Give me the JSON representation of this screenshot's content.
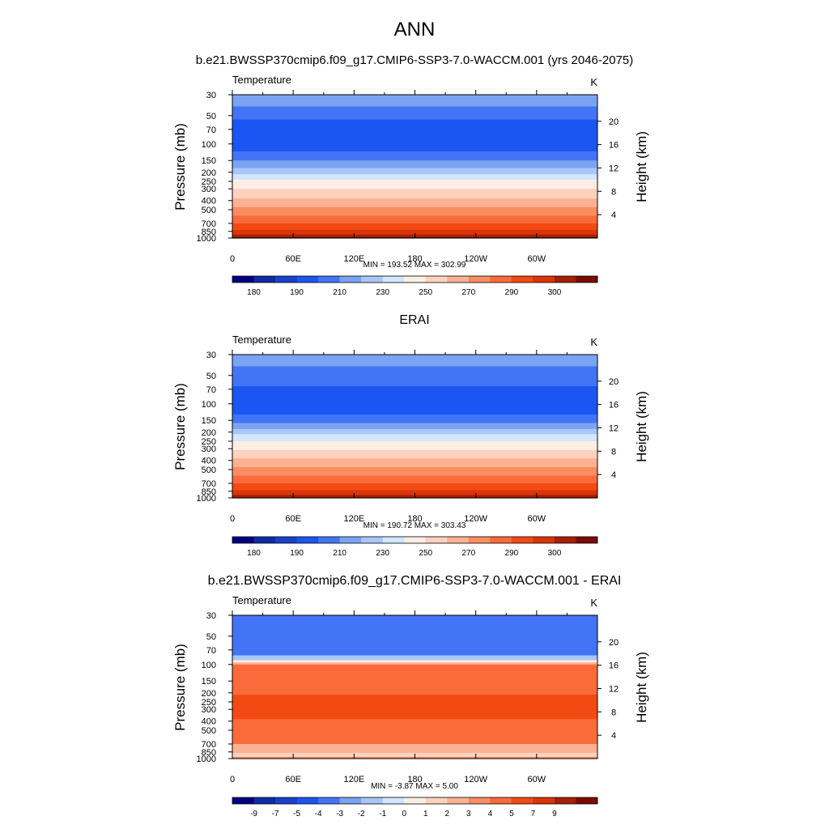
{
  "figure": {
    "title": "ANN",
    "subtitle": "b.e21.BWSSP370cmip6.f09_g17.CMIP6-SSP3-7.0-WACCM.001 (yrs 2046-2075)"
  },
  "chart_data": [
    {
      "type": "heatmap",
      "panel_title": "",
      "variable": "Temperature",
      "units": "K",
      "ylabel": "Pressure (mb)",
      "ylabel_right": "Height (km)",
      "x_ticks": [
        "0",
        "60E",
        "120E",
        "180",
        "120W",
        "60W"
      ],
      "y_ticks": [
        "30",
        "50",
        "70",
        "100",
        "150",
        "200",
        "250",
        "300",
        "400",
        "500",
        "700",
        "850",
        "1000"
      ],
      "y_ticks_right": [
        "20",
        "16",
        "12",
        "8",
        "4"
      ],
      "stats": "MIN = 193.52  MAX = 302.99",
      "colorbar_labels": [
        "180",
        "190",
        "210",
        "230",
        "250",
        "270",
        "290",
        "300"
      ],
      "colorbar_colors": [
        "#000080",
        "#0d2ba4",
        "#1841cc",
        "#1b55f2",
        "#4274f5",
        "#7aa3f2",
        "#a8c6fa",
        "#d2e6fd",
        "#fdeee3",
        "#fcd2bf",
        "#fbb292",
        "#fb8d62",
        "#fb6a3a",
        "#f24a12",
        "#d93507",
        "#a81e08",
        "#7a0a04"
      ],
      "layers": [
        {
          "p": 30,
          "level": 5
        },
        {
          "p": 40,
          "level": 4
        },
        {
          "p": 55,
          "level": 3
        },
        {
          "p": 100,
          "level": 3
        },
        {
          "p": 120,
          "level": 4
        },
        {
          "p": 150,
          "level": 5
        },
        {
          "p": 180,
          "level": 6
        },
        {
          "p": 210,
          "level": 7
        },
        {
          "p": 240,
          "level": 8
        },
        {
          "p": 300,
          "level": 9
        },
        {
          "p": 380,
          "level": 10
        },
        {
          "p": 470,
          "level": 11
        },
        {
          "p": 580,
          "level": 12
        },
        {
          "p": 700,
          "level": 13
        },
        {
          "p": 820,
          "level": 14
        },
        {
          "p": 920,
          "level": 15
        },
        {
          "p": 980,
          "level": 16
        }
      ]
    },
    {
      "type": "heatmap",
      "panel_title": "ERAI",
      "variable": "Temperature",
      "units": "K",
      "ylabel": "Pressure (mb)",
      "ylabel_right": "Height (km)",
      "x_ticks": [
        "0",
        "60E",
        "120E",
        "180",
        "120W",
        "60W"
      ],
      "y_ticks": [
        "30",
        "50",
        "70",
        "100",
        "150",
        "200",
        "250",
        "300",
        "400",
        "500",
        "700",
        "850",
        "1000"
      ],
      "y_ticks_right": [
        "20",
        "16",
        "12",
        "8",
        "4"
      ],
      "stats": "MIN = 190.72  MAX = 303.43",
      "colorbar_labels": [
        "180",
        "190",
        "210",
        "230",
        "250",
        "270",
        "290",
        "300"
      ],
      "colorbar_colors": [
        "#000080",
        "#0d2ba4",
        "#1841cc",
        "#1b55f2",
        "#4274f5",
        "#7aa3f2",
        "#a8c6fa",
        "#d2e6fd",
        "#fdeee3",
        "#fcd2bf",
        "#fbb292",
        "#fb8d62",
        "#fb6a3a",
        "#f24a12",
        "#d93507",
        "#a81e08",
        "#7a0a04"
      ],
      "layers": [
        {
          "p": 30,
          "level": 5
        },
        {
          "p": 40,
          "level": 4
        },
        {
          "p": 65,
          "level": 3
        },
        {
          "p": 130,
          "level": 4
        },
        {
          "p": 160,
          "level": 5
        },
        {
          "p": 185,
          "level": 6
        },
        {
          "p": 210,
          "level": 7
        },
        {
          "p": 250,
          "level": 8
        },
        {
          "p": 310,
          "level": 9
        },
        {
          "p": 380,
          "level": 10
        },
        {
          "p": 470,
          "level": 11
        },
        {
          "p": 580,
          "level": 12
        },
        {
          "p": 700,
          "level": 13
        },
        {
          "p": 830,
          "level": 14
        },
        {
          "p": 930,
          "level": 15
        },
        {
          "p": 985,
          "level": 16
        }
      ]
    },
    {
      "type": "heatmap",
      "panel_title": "b.e21.BWSSP370cmip6.f09_g17.CMIP6-SSP3-7.0-WACCM.001 - ERAI",
      "variable": "Temperature",
      "units": "K",
      "ylabel": "Pressure (mb)",
      "ylabel_right": "Height (km)",
      "x_ticks": [
        "0",
        "60E",
        "120E",
        "180",
        "120W",
        "60W"
      ],
      "y_ticks": [
        "30",
        "50",
        "70",
        "100",
        "150",
        "200",
        "250",
        "300",
        "400",
        "500",
        "700",
        "850",
        "1000"
      ],
      "y_ticks_right": [
        "20",
        "16",
        "12",
        "8",
        "4"
      ],
      "stats": "MIN =  -3.87  MAX =   5.00",
      "colorbar_labels": [
        "-9",
        "-7",
        "-5",
        "-4",
        "-3",
        "-2",
        "-1",
        "0",
        "1",
        "2",
        "3",
        "4",
        "5",
        "7",
        "9"
      ],
      "colorbar_colors": [
        "#000080",
        "#0d2ba4",
        "#1841cc",
        "#1b55f2",
        "#4274f5",
        "#7aa3f2",
        "#a8c6fa",
        "#d2e6fd",
        "#fdeee3",
        "#fcd2bf",
        "#fbb292",
        "#fb8d62",
        "#fb6a3a",
        "#f24a12",
        "#d93507",
        "#a81e08",
        "#7a0a04"
      ],
      "layers": [
        {
          "p": 30,
          "level": 4
        },
        {
          "p": 80,
          "level": 6
        },
        {
          "p": 90,
          "level": 8
        },
        {
          "p": 95,
          "level": 10
        },
        {
          "p": 100,
          "level": 12
        },
        {
          "p": 210,
          "level": 13
        },
        {
          "p": 380,
          "level": 12
        },
        {
          "p": 700,
          "level": 10
        },
        {
          "p": 870,
          "level": 9
        },
        {
          "p": 960,
          "level": 11
        }
      ]
    }
  ]
}
